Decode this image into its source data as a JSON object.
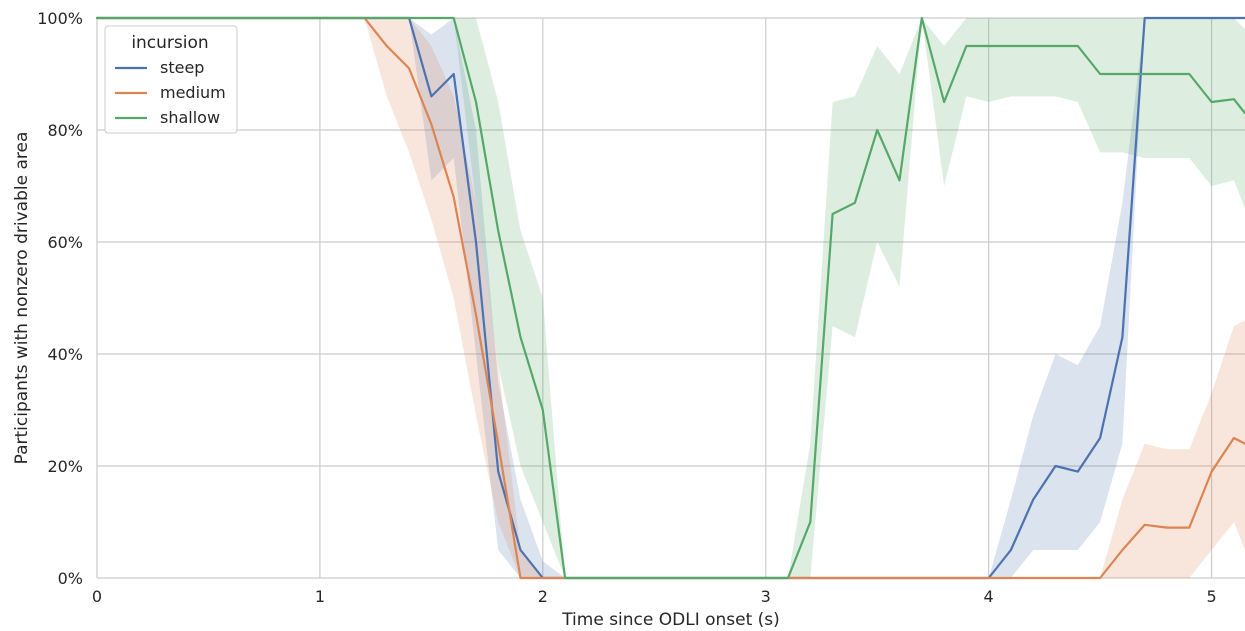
{
  "chart_data": {
    "type": "line",
    "xlabel": "Time since ODLI onset (s)",
    "ylabel": "Participants with nonzero drivable area",
    "xlim": [
      0,
      5.15
    ],
    "ylim": [
      0,
      100
    ],
    "x_ticks": [
      "0",
      "1",
      "2",
      "3",
      "4",
      "5"
    ],
    "y_ticks": [
      "0%",
      "20%",
      "40%",
      "60%",
      "80%",
      "100%"
    ],
    "grid": true,
    "legend": {
      "title": "incursion",
      "position": "top-left"
    },
    "series": [
      {
        "name": "steep",
        "color": "#4c72b0",
        "x": [
          0,
          1.4,
          1.5,
          1.6,
          1.7,
          1.8,
          1.9,
          2.0,
          2.1,
          3.0,
          4.0,
          4.1,
          4.2,
          4.3,
          4.4,
          4.5,
          4.6,
          4.7,
          4.8,
          4.9,
          5.0,
          5.1,
          5.15
        ],
        "y": [
          100,
          100,
          86,
          90,
          60,
          19,
          5,
          0,
          0,
          0,
          0,
          5,
          14,
          20,
          19,
          25,
          43,
          100,
          100,
          100,
          100,
          100,
          100
        ],
        "ci_lower": [
          100,
          100,
          71,
          75,
          40,
          5,
          0,
          0,
          0,
          0,
          0,
          0,
          5,
          5,
          5,
          10,
          24,
          100,
          100,
          100,
          100,
          100,
          100
        ],
        "ci_upper": [
          100,
          100,
          97,
          100,
          80,
          35,
          14,
          3,
          0,
          0,
          0,
          14,
          29,
          40,
          38,
          45,
          67,
          100,
          100,
          100,
          100,
          100,
          100
        ]
      },
      {
        "name": "medium",
        "color": "#dd8452",
        "x": [
          0,
          1.2,
          1.3,
          1.4,
          1.5,
          1.6,
          1.7,
          1.8,
          1.9,
          2.0,
          3.0,
          4.0,
          4.5,
          4.6,
          4.7,
          4.8,
          4.9,
          5.0,
          5.1,
          5.15
        ],
        "y": [
          100,
          100,
          95,
          91,
          81,
          68,
          47,
          24,
          0,
          0,
          0,
          0,
          0,
          5,
          9.5,
          9,
          9,
          19,
          25,
          24
        ],
        "ci_lower": [
          100,
          100,
          86,
          76,
          64,
          50,
          29,
          10,
          0,
          0,
          0,
          0,
          0,
          0,
          0,
          0,
          0,
          5,
          10,
          5
        ],
        "ci_upper": [
          100,
          100,
          100,
          100,
          95,
          86,
          67,
          38,
          5,
          0,
          0,
          0,
          0,
          14,
          24,
          23,
          23,
          33,
          45,
          46
        ]
      },
      {
        "name": "shallow",
        "color": "#55a868",
        "x": [
          0,
          1.6,
          1.7,
          1.8,
          1.9,
          2.0,
          2.1,
          3.0,
          3.1,
          3.2,
          3.3,
          3.4,
          3.5,
          3.6,
          3.7,
          3.8,
          3.9,
          4.0,
          4.1,
          4.2,
          4.3,
          4.4,
          4.5,
          4.6,
          4.7,
          4.8,
          4.9,
          5.0,
          5.1,
          5.15
        ],
        "y": [
          100,
          100,
          85,
          62,
          43,
          30,
          0,
          0,
          0,
          10,
          65,
          67,
          80,
          71,
          100,
          85,
          95,
          95,
          95,
          95,
          95,
          95,
          90,
          90,
          90,
          90,
          90,
          85,
          85.5,
          83
        ],
        "ci_lower": [
          100,
          100,
          67,
          38,
          20,
          10,
          0,
          0,
          0,
          0,
          45,
          43,
          60,
          52,
          100,
          70,
          86,
          85,
          86,
          86,
          86,
          85,
          76,
          76,
          75,
          75,
          75,
          70,
          71,
          66
        ],
        "ci_upper": [
          100,
          100,
          100,
          85,
          62,
          50,
          0,
          0,
          0,
          24,
          85,
          86,
          95,
          90,
          100,
          95,
          100,
          100,
          100,
          100,
          100,
          100,
          100,
          100,
          100,
          100,
          100,
          100,
          100,
          98
        ]
      }
    ]
  }
}
